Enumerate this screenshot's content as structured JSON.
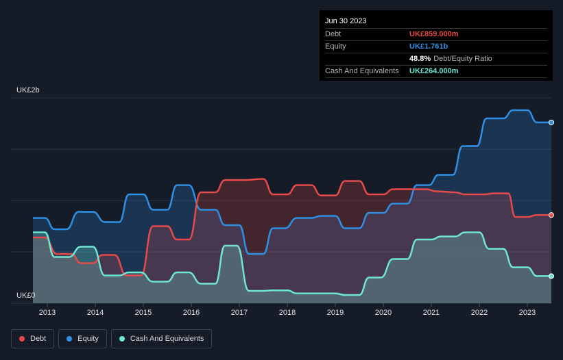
{
  "tooltip": {
    "date": "Jun 30 2023",
    "debt_label": "Debt",
    "debt_value": "UK£859.000m",
    "equity_label": "Equity",
    "equity_value": "UK£1.761b",
    "ratio_value": "48.8%",
    "ratio_label": "Debt/Equity Ratio",
    "cash_label": "Cash And Equivalents",
    "cash_value": "UK£264.000m"
  },
  "legend": [
    {
      "label": "Debt",
      "color": "#e64a4a"
    },
    {
      "label": "Equity",
      "color": "#2e8fe6"
    },
    {
      "label": "Cash And Equivalents",
      "color": "#6ee6d0"
    }
  ],
  "colors": {
    "debt": "#e64a4a",
    "equity": "#2e8fe6",
    "cash": "#6ee6d0",
    "background": "#151b27"
  },
  "chart_data": {
    "type": "area",
    "y_top_label": "UK£2b",
    "y_bottom_label": "UK£0",
    "ylim": [
      0,
      2000
    ],
    "xlim": [
      2012.7,
      2023.5
    ],
    "x_ticks": [
      "2013",
      "2014",
      "2015",
      "2016",
      "2017",
      "2018",
      "2019",
      "2020",
      "2021",
      "2022",
      "2023"
    ],
    "series": [
      {
        "name": "Debt",
        "points": [
          [
            2012.7,
            640
          ],
          [
            2012.95,
            640
          ],
          [
            2013.2,
            480
          ],
          [
            2013.5,
            480
          ],
          [
            2013.7,
            390
          ],
          [
            2013.95,
            390
          ],
          [
            2014.15,
            470
          ],
          [
            2014.4,
            470
          ],
          [
            2014.65,
            270
          ],
          [
            2014.95,
            270
          ],
          [
            2015.2,
            750
          ],
          [
            2015.5,
            750
          ],
          [
            2015.7,
            620
          ],
          [
            2015.95,
            620
          ],
          [
            2016.2,
            1080
          ],
          [
            2016.5,
            1080
          ],
          [
            2016.7,
            1200
          ],
          [
            2017.1,
            1200
          ],
          [
            2017.5,
            1210
          ],
          [
            2017.7,
            1060
          ],
          [
            2018.0,
            1060
          ],
          [
            2018.2,
            1150
          ],
          [
            2018.5,
            1150
          ],
          [
            2018.7,
            1050
          ],
          [
            2019.0,
            1050
          ],
          [
            2019.2,
            1190
          ],
          [
            2019.5,
            1190
          ],
          [
            2019.7,
            1060
          ],
          [
            2020.0,
            1060
          ],
          [
            2020.2,
            1110
          ],
          [
            2020.9,
            1110
          ],
          [
            2021.1,
            1090
          ],
          [
            2021.5,
            1080
          ],
          [
            2021.7,
            1060
          ],
          [
            2022.1,
            1060
          ],
          [
            2022.3,
            1070
          ],
          [
            2022.6,
            1070
          ],
          [
            2022.75,
            840
          ],
          [
            2023.0,
            840
          ],
          [
            2023.2,
            859
          ],
          [
            2023.5,
            859
          ]
        ]
      },
      {
        "name": "Equity",
        "points": [
          [
            2012.7,
            830
          ],
          [
            2012.95,
            830
          ],
          [
            2013.15,
            720
          ],
          [
            2013.4,
            720
          ],
          [
            2013.65,
            890
          ],
          [
            2013.95,
            890
          ],
          [
            2014.2,
            790
          ],
          [
            2014.5,
            790
          ],
          [
            2014.7,
            1060
          ],
          [
            2015.0,
            1060
          ],
          [
            2015.2,
            910
          ],
          [
            2015.5,
            910
          ],
          [
            2015.7,
            1150
          ],
          [
            2015.95,
            1150
          ],
          [
            2016.2,
            910
          ],
          [
            2016.5,
            910
          ],
          [
            2016.7,
            760
          ],
          [
            2017.0,
            760
          ],
          [
            2017.2,
            480
          ],
          [
            2017.5,
            480
          ],
          [
            2017.7,
            730
          ],
          [
            2017.95,
            730
          ],
          [
            2018.2,
            830
          ],
          [
            2018.5,
            830
          ],
          [
            2018.7,
            850
          ],
          [
            2019.0,
            850
          ],
          [
            2019.2,
            730
          ],
          [
            2019.5,
            730
          ],
          [
            2019.7,
            880
          ],
          [
            2020.0,
            880
          ],
          [
            2020.2,
            970
          ],
          [
            2020.5,
            970
          ],
          [
            2020.7,
            1150
          ],
          [
            2020.95,
            1150
          ],
          [
            2021.15,
            1250
          ],
          [
            2021.45,
            1250
          ],
          [
            2021.65,
            1530
          ],
          [
            2021.95,
            1530
          ],
          [
            2022.15,
            1800
          ],
          [
            2022.5,
            1800
          ],
          [
            2022.7,
            1880
          ],
          [
            2023.0,
            1880
          ],
          [
            2023.2,
            1761
          ],
          [
            2023.5,
            1761
          ]
        ]
      },
      {
        "name": "Cash And Equivalents",
        "points": [
          [
            2012.7,
            690
          ],
          [
            2012.95,
            690
          ],
          [
            2013.15,
            450
          ],
          [
            2013.45,
            450
          ],
          [
            2013.7,
            550
          ],
          [
            2013.95,
            550
          ],
          [
            2014.2,
            270
          ],
          [
            2014.5,
            270
          ],
          [
            2014.7,
            300
          ],
          [
            2014.95,
            300
          ],
          [
            2015.2,
            210
          ],
          [
            2015.5,
            210
          ],
          [
            2015.7,
            300
          ],
          [
            2015.95,
            300
          ],
          [
            2016.2,
            190
          ],
          [
            2016.5,
            190
          ],
          [
            2016.7,
            560
          ],
          [
            2016.95,
            560
          ],
          [
            2017.2,
            120
          ],
          [
            2017.5,
            120
          ],
          [
            2017.7,
            125
          ],
          [
            2018.0,
            125
          ],
          [
            2018.2,
            95
          ],
          [
            2018.5,
            95
          ],
          [
            2019.0,
            95
          ],
          [
            2019.2,
            80
          ],
          [
            2019.5,
            80
          ],
          [
            2019.7,
            250
          ],
          [
            2019.95,
            250
          ],
          [
            2020.2,
            430
          ],
          [
            2020.5,
            430
          ],
          [
            2020.7,
            620
          ],
          [
            2021.0,
            620
          ],
          [
            2021.2,
            650
          ],
          [
            2021.5,
            650
          ],
          [
            2021.7,
            690
          ],
          [
            2022.0,
            690
          ],
          [
            2022.2,
            530
          ],
          [
            2022.5,
            530
          ],
          [
            2022.7,
            350
          ],
          [
            2023.0,
            350
          ],
          [
            2023.2,
            264
          ],
          [
            2023.5,
            264
          ]
        ]
      }
    ]
  }
}
